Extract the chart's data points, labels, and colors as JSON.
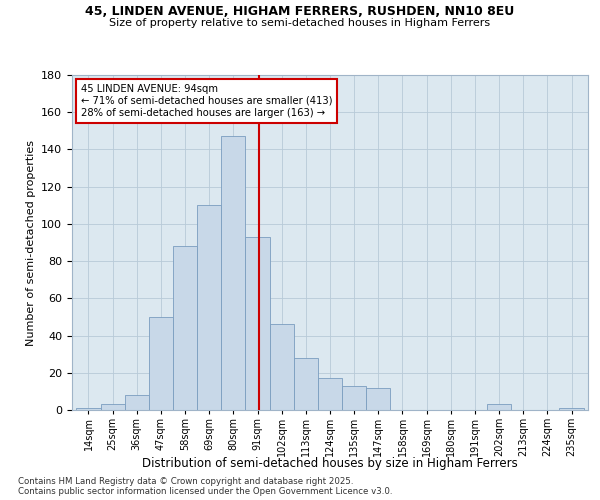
{
  "title1": "45, LINDEN AVENUE, HIGHAM FERRERS, RUSHDEN, NN10 8EU",
  "title2": "Size of property relative to semi-detached houses in Higham Ferrers",
  "xlabel": "Distribution of semi-detached houses by size in Higham Ferrers",
  "ylabel": "Number of semi-detached properties",
  "annotation_line1": "45 LINDEN AVENUE: 94sqm",
  "annotation_line2": "← 71% of semi-detached houses are smaller (413)",
  "annotation_line3": "28% of semi-detached houses are larger (163) →",
  "bar_color": "#c8d8e8",
  "bar_edge_color": "#7a9dbf",
  "highlight_color": "#cc0000",
  "categories": [
    "14sqm",
    "25sqm",
    "36sqm",
    "47sqm",
    "58sqm",
    "69sqm",
    "80sqm",
    "91sqm",
    "102sqm",
    "113sqm",
    "124sqm",
    "135sqm",
    "147sqm",
    "158sqm",
    "169sqm",
    "180sqm",
    "191sqm",
    "202sqm",
    "213sqm",
    "224sqm",
    "235sqm"
  ],
  "values": [
    1,
    3,
    8,
    50,
    88,
    110,
    147,
    93,
    46,
    28,
    17,
    13,
    12,
    0,
    0,
    0,
    0,
    3,
    0,
    0,
    1
  ],
  "ylim": [
    0,
    180
  ],
  "yticks": [
    0,
    20,
    40,
    60,
    80,
    100,
    120,
    140,
    160,
    180
  ],
  "footnote1": "Contains HM Land Registry data © Crown copyright and database right 2025.",
  "footnote2": "Contains public sector information licensed under the Open Government Licence v3.0.",
  "bg_axes": "#dce8f0",
  "grid_color": "#b8cad8"
}
